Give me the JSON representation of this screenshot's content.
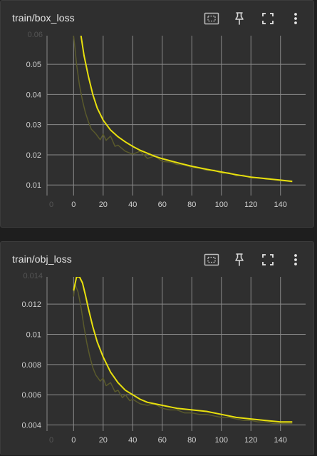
{
  "colors": {
    "background": "#1e1e1e",
    "card": "#2f2f2f",
    "grid": "#8a8a8a",
    "smoothed": "#e8e00d",
    "raw": "#5a5a2c",
    "text": "#e6e6e6"
  },
  "toolbar": {
    "icons": [
      "fit-domain-icon",
      "pin-icon",
      "fullscreen-icon",
      "more-vert-icon"
    ]
  },
  "chart_data": [
    {
      "type": "line",
      "title": "train/box_loss",
      "xlabel": "",
      "ylabel": "",
      "xlim": [
        -18,
        157
      ],
      "ylim": [
        0.0065,
        0.0595
      ],
      "x_ticks": [
        0,
        20,
        40,
        60,
        80,
        100,
        120,
        140
      ],
      "x_tick_labels": [
        "0",
        "20",
        "40",
        "60",
        "80",
        "100",
        "120",
        "140"
      ],
      "x_clipped_tick_label": "0",
      "y_ticks": [
        0.01,
        0.02,
        0.03,
        0.04,
        0.05
      ],
      "y_tick_labels": [
        "0.01",
        "0.02",
        "0.03",
        "0.04",
        "0.05"
      ],
      "y_clipped_tick_label": "0.06",
      "grid": true,
      "series": [
        {
          "role": "smoothed",
          "x": [
            5,
            7,
            10,
            13,
            16,
            20,
            25,
            30,
            35,
            40,
            45,
            50,
            55,
            60,
            70,
            80,
            90,
            100,
            110,
            120,
            130,
            140,
            148
          ],
          "y": [
            0.0595,
            0.053,
            0.046,
            0.04,
            0.0355,
            0.0315,
            0.0282,
            0.026,
            0.0243,
            0.0228,
            0.0215,
            0.0205,
            0.0195,
            0.0187,
            0.0174,
            0.0162,
            0.0152,
            0.0143,
            0.0134,
            0.0126,
            0.0121,
            0.0116,
            0.0112
          ]
        },
        {
          "role": "raw",
          "x": [
            0,
            1,
            2,
            4,
            6,
            8,
            10,
            12,
            15,
            18,
            20,
            22,
            25,
            28,
            30,
            35,
            40,
            45,
            50,
            55,
            60,
            65,
            70,
            75,
            80,
            85,
            90,
            95,
            100,
            105,
            110,
            115,
            120,
            125,
            130,
            135,
            140,
            145,
            148
          ],
          "y": [
            0.0595,
            0.055,
            0.05,
            0.043,
            0.038,
            0.034,
            0.031,
            0.0285,
            0.027,
            0.025,
            0.0268,
            0.0248,
            0.0262,
            0.0228,
            0.0232,
            0.0212,
            0.0202,
            0.0212,
            0.0188,
            0.0196,
            0.0178,
            0.0176,
            0.0168,
            0.0166,
            0.0158,
            0.0156,
            0.0148,
            0.015,
            0.0138,
            0.0142,
            0.013,
            0.0133,
            0.0123,
            0.0125,
            0.0119,
            0.0118,
            0.0114,
            0.0112,
            0.011
          ]
        }
      ]
    },
    {
      "type": "line",
      "title": "train/obj_loss",
      "xlabel": "",
      "ylabel": "",
      "xlim": [
        -18,
        157
      ],
      "ylim": [
        0.0036,
        0.0138
      ],
      "x_ticks": [
        0,
        20,
        40,
        60,
        80,
        100,
        120,
        140
      ],
      "x_tick_labels": [
        "0",
        "20",
        "40",
        "60",
        "80",
        "100",
        "120",
        "140"
      ],
      "x_clipped_tick_label": "0",
      "y_ticks": [
        0.004,
        0.006,
        0.008,
        0.01,
        0.012
      ],
      "y_tick_labels": [
        "0.004",
        "0.006",
        "0.008",
        "0.01",
        "0.012"
      ],
      "y_clipped_tick_label": "0.014",
      "grid": true,
      "series": [
        {
          "role": "smoothed",
          "x": [
            0,
            2,
            4,
            6,
            8,
            10,
            13,
            16,
            20,
            25,
            30,
            35,
            40,
            45,
            50,
            55,
            60,
            70,
            80,
            90,
            100,
            110,
            120,
            130,
            140,
            148
          ],
          "y": [
            0.0129,
            0.0138,
            0.0138,
            0.0134,
            0.0126,
            0.0117,
            0.0105,
            0.0095,
            0.0085,
            0.0075,
            0.0068,
            0.0063,
            0.006,
            0.0057,
            0.0055,
            0.0054,
            0.0053,
            0.0051,
            0.005,
            0.0049,
            0.0047,
            0.0045,
            0.0044,
            0.0043,
            0.0042,
            0.0042
          ]
        },
        {
          "role": "raw",
          "x": [
            0,
            1,
            3,
            5,
            7,
            9,
            11,
            13,
            15,
            18,
            20,
            22,
            25,
            28,
            30,
            33,
            35,
            38,
            40,
            45,
            50,
            55,
            60,
            65,
            70,
            75,
            80,
            85,
            90,
            95,
            100,
            105,
            110,
            115,
            120,
            125,
            130,
            135,
            140,
            145,
            148
          ],
          "y": [
            0.0125,
            0.0133,
            0.0128,
            0.0118,
            0.0105,
            0.0094,
            0.0085,
            0.0078,
            0.0073,
            0.0069,
            0.0071,
            0.0066,
            0.0068,
            0.0062,
            0.0063,
            0.0058,
            0.006,
            0.0056,
            0.0057,
            0.0054,
            0.0053,
            0.0054,
            0.0051,
            0.005,
            0.005,
            0.0048,
            0.0048,
            0.0047,
            0.0047,
            0.0046,
            0.0045,
            0.0045,
            0.0044,
            0.0043,
            0.0043,
            0.0042,
            0.0042,
            0.0041,
            0.0041,
            0.0041,
            0.0041
          ]
        }
      ]
    }
  ]
}
